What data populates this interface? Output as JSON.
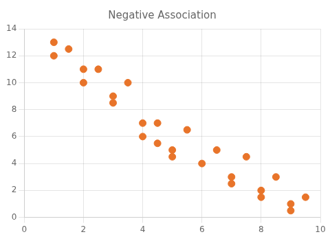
{
  "chart_data": {
    "type": "scatter",
    "title": "Negative Association",
    "x": [
      1,
      1,
      1.5,
      2,
      2,
      2.5,
      3,
      3,
      3.5,
      4,
      4,
      4.5,
      4.5,
      5,
      5,
      5.5,
      6,
      6.5,
      7,
      7,
      7.5,
      8,
      8,
      8.5,
      9,
      9,
      9.5
    ],
    "y": [
      13,
      12,
      12.5,
      11,
      10,
      11,
      9,
      8.5,
      10,
      7,
      6,
      7,
      5.5,
      5,
      4.5,
      6.5,
      4,
      5,
      3,
      2.5,
      4.5,
      2,
      1.5,
      3,
      1,
      0.5,
      1.5
    ],
    "color": "#E8742A",
    "xlim": [
      0,
      10
    ],
    "ylim": [
      0,
      14
    ],
    "xticks": [
      0,
      2,
      4,
      6,
      8,
      10
    ],
    "yticks": [
      0,
      2,
      4,
      6,
      8,
      10,
      12,
      14
    ],
    "grid": true
  }
}
